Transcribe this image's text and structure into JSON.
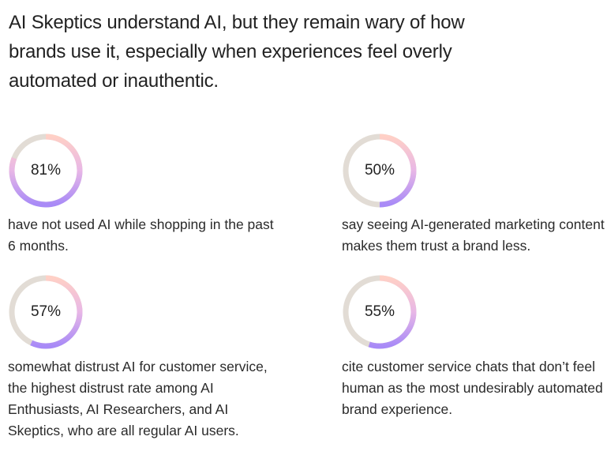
{
  "headline": "AI Skeptics understand AI, but they remain wary of how brands use it, especially when experiences feel overly automated or inauthentic.",
  "colors": {
    "track": "#e2dcd5",
    "gradient_start": "#ffd0c6",
    "gradient_mid": "#e8b7e6",
    "gradient_end": "#a88af7"
  },
  "stats": [
    {
      "percent_label": "81%",
      "fraction": 0.81,
      "text": "have not used AI while shopping in the past 6 months."
    },
    {
      "percent_label": "50%",
      "fraction": 0.5,
      "text": "say seeing AI-generated marketing content makes them trust a brand less."
    },
    {
      "percent_label": "57%",
      "fraction": 0.57,
      "text": "somewhat distrust AI for customer service, the highest distrust rate among AI Enthusiasts, AI Researchers, and AI Skeptics, who are all regular AI users."
    },
    {
      "percent_label": "55%",
      "fraction": 0.55,
      "text": "cite customer service chats that don’t feel human as the most undesirably automated brand experience."
    }
  ]
}
